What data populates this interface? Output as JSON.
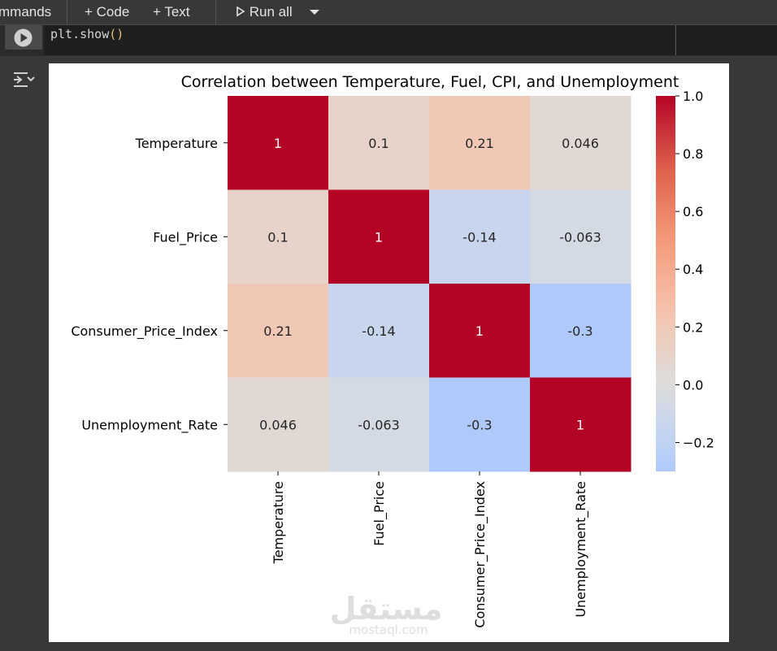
{
  "toolbar": {
    "commands_label": "mmands",
    "code_label": "+ Code",
    "text_label": "+ Text",
    "run_all_label": "Run all"
  },
  "cell": {
    "code_prefix": "plt.show",
    "code_parens": "()"
  },
  "watermark": {
    "arabic": "مستقل",
    "latin": "mostaql.com"
  },
  "chart_data": {
    "type": "heatmap",
    "title": "Correlation between Temperature, Fuel, CPI, and Unemployment",
    "rows": [
      "Temperature",
      "Fuel_Price",
      "Consumer_Price_Index",
      "Unemployment_Rate"
    ],
    "columns": [
      "Temperature",
      "Fuel_Price",
      "Consumer_Price_Index",
      "Unemployment_Rate"
    ],
    "values": [
      [
        1,
        0.1,
        0.21,
        0.046
      ],
      [
        0.1,
        1,
        -0.14,
        -0.063
      ],
      [
        0.21,
        -0.14,
        1,
        -0.3
      ],
      [
        0.046,
        -0.063,
        -0.3,
        1
      ]
    ],
    "annotations": [
      [
        "1",
        "0.1",
        "0.21",
        "0.046"
      ],
      [
        "0.1",
        "1",
        "-0.14",
        "-0.063"
      ],
      [
        "0.21",
        "-0.14",
        "1",
        "-0.3"
      ],
      [
        "0.046",
        "-0.063",
        "-0.3",
        "1"
      ]
    ],
    "colormap": "coolwarm",
    "vmin": -0.3,
    "vmax": 1.0,
    "colorbar_ticks": [
      1.0,
      0.8,
      0.6,
      0.4,
      0.2,
      0.0,
      -0.2
    ],
    "colorbar_tick_labels": [
      "1.0",
      "0.8",
      "0.6",
      "0.4",
      "0.2",
      "0.0",
      "−0.2"
    ]
  }
}
